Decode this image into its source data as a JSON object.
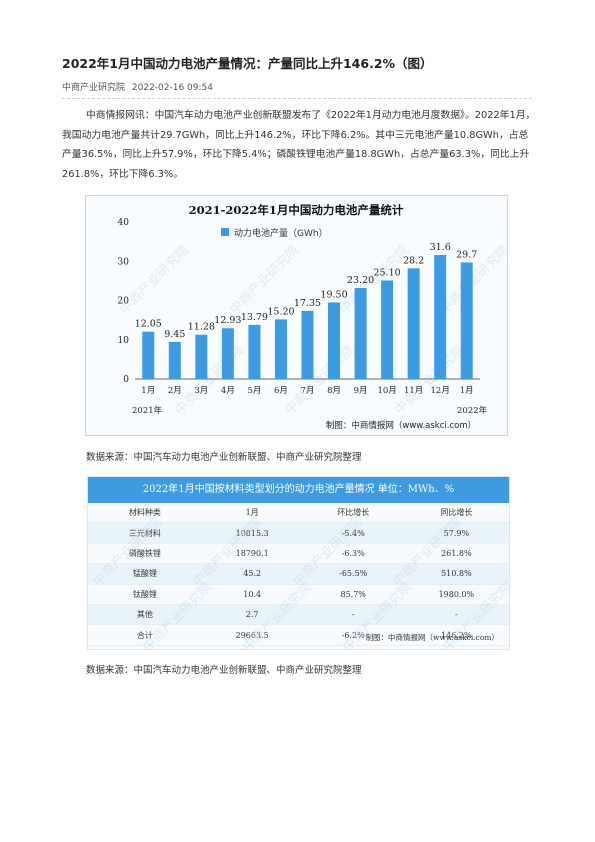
{
  "article": {
    "title": "2022年1月中国动力电池产量情况：产量同比上升146.2%（图）",
    "source": "中商产业研究院",
    "date": "2022-02-16 09:54",
    "paragraph": "中商情报网讯：中国汽车动力电池产业创新联盟发布了《2022年1月动力电池月度数据》。2022年1月，我国动力电池产量共计29.7GWh，同比上升146.2%，环比下降6.2%。其中三元电池产量10.8GWh，占总产量36.5%，同比上升57.9%，环比下降5.4%；磷酸铁锂电池产量18.8GWh，占总产量63.3%，同比上升261.8%，环比下降6.3%。",
    "source_note_1": "数据来源：中国汽车动力电池产业创新联盟、中商产业研究院整理",
    "source_note_2": "数据来源：中国汽车动力电池产业创新联盟、中商产业研究院整理"
  },
  "chart_data": {
    "type": "bar",
    "title": "2021-2022年1月中国动力电池产量统计",
    "legend": "动力电池产量（GWh）",
    "categories": [
      "1月",
      "2月",
      "3月",
      "4月",
      "5月",
      "6月",
      "7月",
      "8月",
      "9月",
      "10月",
      "11月",
      "12月",
      "1月"
    ],
    "values": [
      12.05,
      9.45,
      11.28,
      12.93,
      13.79,
      15.2,
      17.35,
      19.5,
      23.2,
      25.1,
      28.2,
      31.6,
      29.7
    ],
    "value_labels": [
      "12.05",
      "9.45",
      "11.28",
      "12.93",
      "13.79",
      "15.20",
      "17.35",
      "19.50",
      "23.20",
      "25.10",
      "28.2",
      "31.6",
      "29.7"
    ],
    "ylim": [
      0,
      40
    ],
    "yticks": [
      "0",
      "10",
      "20",
      "30",
      "40"
    ],
    "year_left": "2021年",
    "year_right": "2022年",
    "credit": "制图：中商情报网（www.askci.com）",
    "color": "#3d9be3",
    "grid": false,
    "legend_position": "top-left"
  },
  "watermark": "中商产业研究院",
  "table": {
    "title": "2022年1月中国按材料类型划分的动力电池产量情况   单位：MWh、%",
    "headers": [
      "材料种类",
      "1月",
      "环比增长",
      "同比增长"
    ],
    "rows": [
      [
        "三元材料",
        "10815.3",
        "-5.4%",
        "57.9%"
      ],
      [
        "磷酸铁锂",
        "18790.1",
        "-6.3%",
        "261.8%"
      ],
      [
        "锰酸锂",
        "45.2",
        "-65.5%",
        "510.8%"
      ],
      [
        "钛酸锂",
        "10.4",
        "85.7%",
        "1980.0%"
      ],
      [
        "其他",
        "2.7",
        "-",
        "-"
      ],
      [
        "合计",
        "29663.5",
        "-6.2%",
        "146.2%"
      ]
    ],
    "credit": "制图：中商情报网（www.askci.com）"
  }
}
